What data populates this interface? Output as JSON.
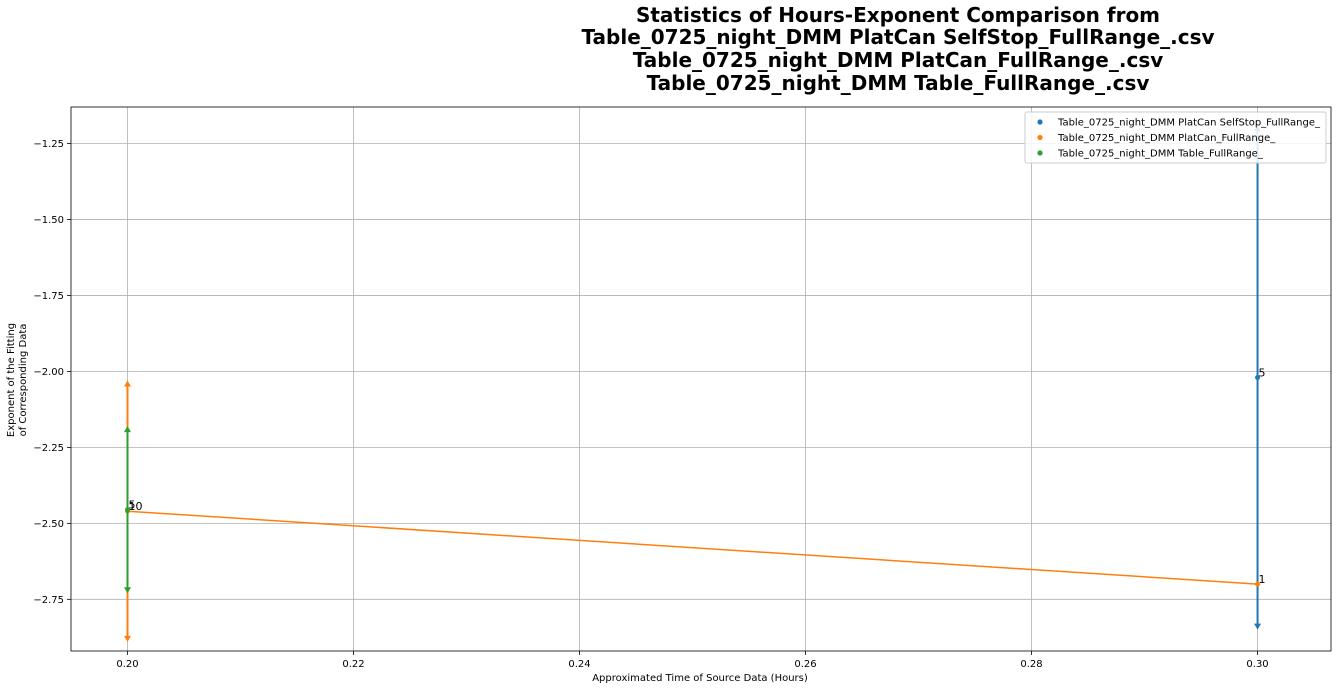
{
  "chart_data": {
    "type": "line",
    "title_lines": [
      "Statistics of Hours-Exponent Comparison from",
      "Table_0725_night_DMM PlatCan SelfStop_FullRange_.csv",
      "Table_0725_night_DMM PlatCan_FullRange_.csv",
      "Table_0725_night_DMM Table_FullRange_.csv"
    ],
    "xlabel": "Approximated Time of Source Data (Hours)",
    "ylabel_lines": [
      "Exponent of the Fitting",
      "of Corresponding Data"
    ],
    "xlim": [
      0.195,
      0.3065
    ],
    "ylim": [
      -2.92,
      -1.13
    ],
    "x_ticks": [
      0.2,
      0.22,
      0.24,
      0.26,
      0.28,
      0.3
    ],
    "x_tick_labels": [
      "0.20",
      "0.22",
      "0.24",
      "0.26",
      "0.28",
      "0.30"
    ],
    "y_ticks": [
      -1.25,
      -1.5,
      -1.75,
      -2.0,
      -2.25,
      -2.5,
      -2.75
    ],
    "y_tick_labels": [
      "−1.25",
      "−1.50",
      "−1.75",
      "−2.00",
      "−2.25",
      "−2.50",
      "−2.75"
    ],
    "grid": true,
    "legend_position": "top-right",
    "series": [
      {
        "name": "Table_0725_night_DMM PlatCan SelfStop_FullRange_",
        "color": "#1f77b4",
        "points": [
          {
            "x": 0.3,
            "y": -2.02,
            "ymin": -2.84,
            "ymax": -1.2,
            "label": "5"
          }
        ]
      },
      {
        "name": "Table_0725_night_DMM PlatCan_FullRange_",
        "color": "#ff7f0e",
        "points": [
          {
            "x": 0.2,
            "y": -2.46,
            "ymin": -2.88,
            "ymax": -2.04,
            "label": "10"
          },
          {
            "x": 0.3,
            "y": -2.7,
            "ymin": -2.7,
            "ymax": -2.7,
            "label": "1"
          }
        ]
      },
      {
        "name": "Table_0725_night_DMM Table_FullRange_",
        "color": "#2ca02c",
        "points": [
          {
            "x": 0.2,
            "y": -2.455,
            "ymin": -2.72,
            "ymax": -2.19,
            "label": "5"
          }
        ]
      }
    ]
  }
}
